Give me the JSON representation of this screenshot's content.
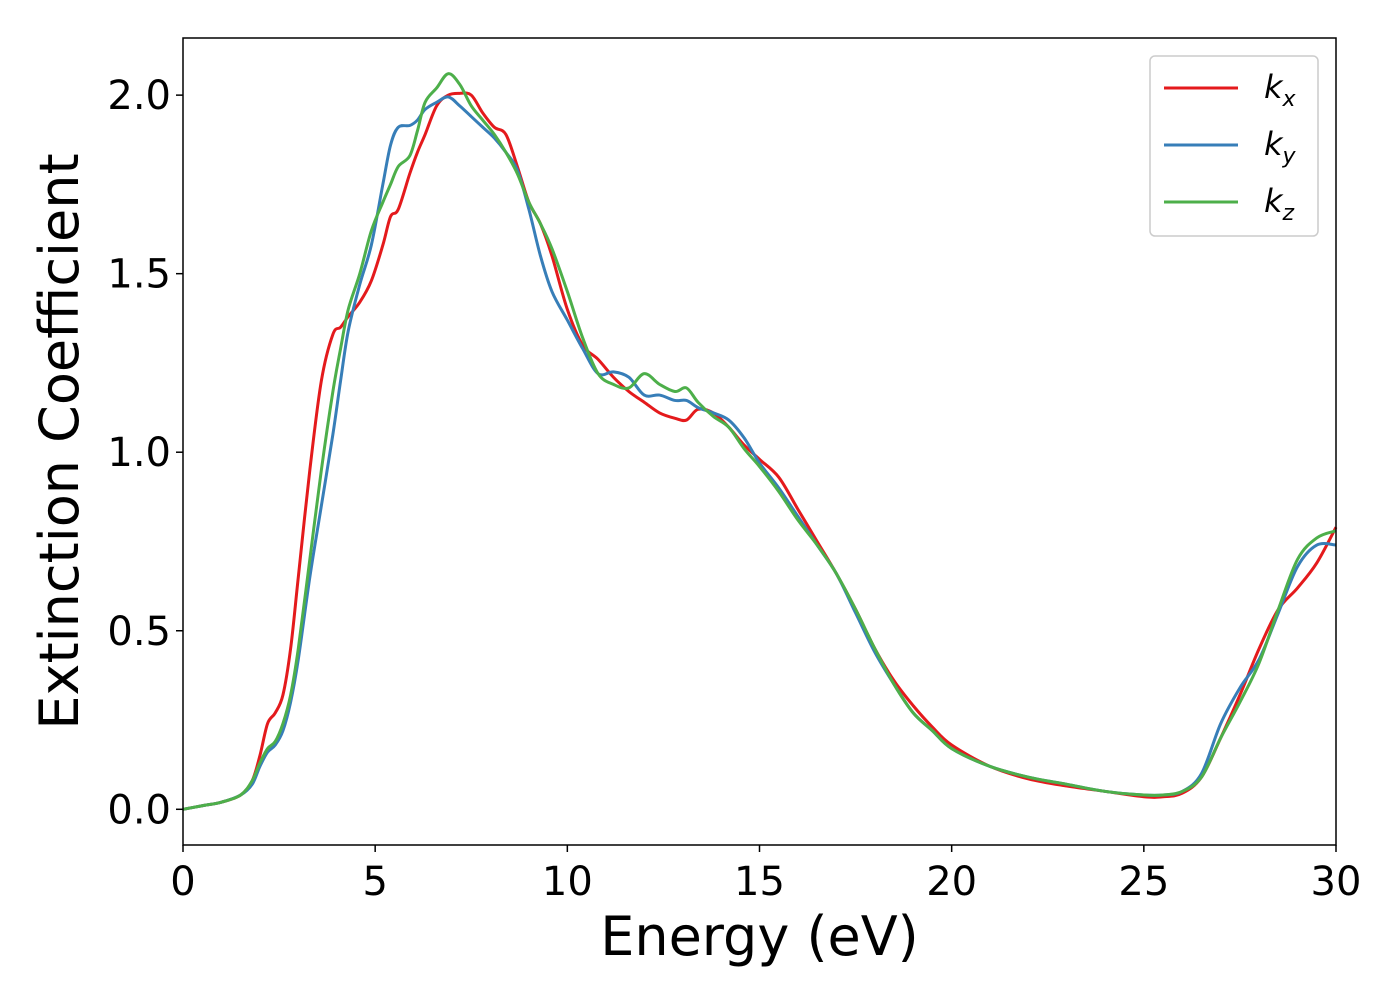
{
  "chart_data": {
    "type": "line",
    "xlabel": "Energy (eV)",
    "ylabel": "Extinction Coefficient",
    "xlim": [
      0,
      30
    ],
    "ylim": [
      -0.1,
      2.16
    ],
    "xticks": [
      0,
      5,
      10,
      15,
      20,
      25,
      30
    ],
    "yticks": [
      0.0,
      0.5,
      1.0,
      1.5,
      2.0
    ],
    "xtick_labels": [
      "0",
      "5",
      "10",
      "15",
      "20",
      "25",
      "30"
    ],
    "ytick_labels": [
      "0.0",
      "0.5",
      "1.0",
      "1.5",
      "2.0"
    ],
    "grid": false,
    "legend_position": "top-right",
    "series": [
      {
        "name": "k",
        "subscript": "x",
        "color": "#e41a1c",
        "x": [
          0,
          0.5,
          1,
          1.5,
          1.8,
          2,
          2.2,
          2.4,
          2.6,
          2.8,
          3,
          3.3,
          3.6,
          3.9,
          4.1,
          4.3,
          4.6,
          4.9,
          5.2,
          5.4,
          5.6,
          5.9,
          6.1,
          6.3,
          6.6,
          6.9,
          7.2,
          7.5,
          7.8,
          8.1,
          8.4,
          8.7,
          9,
          9.3,
          9.6,
          10,
          10.4,
          10.8,
          11.2,
          11.6,
          12,
          12.4,
          12.8,
          13.1,
          13.4,
          13.8,
          14.2,
          14.6,
          15,
          15.5,
          16,
          16.5,
          17,
          17.5,
          18,
          18.5,
          19,
          19.5,
          20,
          21,
          22,
          23,
          24,
          25,
          25.5,
          26,
          26.5,
          27,
          27.5,
          28,
          28.5,
          29,
          29.5,
          30
        ],
        "y": [
          0,
          0.01,
          0.02,
          0.04,
          0.08,
          0.15,
          0.24,
          0.27,
          0.32,
          0.45,
          0.65,
          0.95,
          1.2,
          1.33,
          1.35,
          1.38,
          1.42,
          1.48,
          1.58,
          1.66,
          1.68,
          1.78,
          1.84,
          1.89,
          1.97,
          2.0,
          2.005,
          2.0,
          1.95,
          1.91,
          1.89,
          1.8,
          1.7,
          1.64,
          1.55,
          1.4,
          1.3,
          1.26,
          1.21,
          1.17,
          1.14,
          1.11,
          1.095,
          1.09,
          1.12,
          1.11,
          1.07,
          1.02,
          0.98,
          0.93,
          0.84,
          0.75,
          0.66,
          0.56,
          0.45,
          0.36,
          0.29,
          0.23,
          0.18,
          0.12,
          0.085,
          0.065,
          0.05,
          0.035,
          0.035,
          0.045,
          0.09,
          0.2,
          0.32,
          0.45,
          0.56,
          0.62,
          0.69,
          0.79
        ]
      },
      {
        "name": "k",
        "subscript": "y",
        "color": "#377eb8",
        "x": [
          0,
          0.5,
          1,
          1.5,
          1.8,
          2,
          2.2,
          2.4,
          2.6,
          2.8,
          3,
          3.3,
          3.6,
          3.9,
          4.1,
          4.3,
          4.6,
          4.9,
          5.2,
          5.4,
          5.6,
          5.9,
          6.1,
          6.3,
          6.6,
          6.9,
          7.2,
          7.5,
          7.8,
          8.1,
          8.4,
          8.7,
          9,
          9.3,
          9.6,
          10,
          10.4,
          10.8,
          11.2,
          11.6,
          12,
          12.4,
          12.8,
          13.1,
          13.4,
          13.8,
          14.2,
          14.6,
          15,
          15.5,
          16,
          16.5,
          17,
          17.5,
          18,
          18.5,
          19,
          19.5,
          20,
          21,
          22,
          23,
          24,
          25,
          25.5,
          26,
          26.5,
          27,
          27.5,
          28,
          28.5,
          29,
          29.5,
          30
        ],
        "y": [
          0,
          0.01,
          0.02,
          0.04,
          0.07,
          0.12,
          0.16,
          0.18,
          0.22,
          0.3,
          0.42,
          0.65,
          0.85,
          1.05,
          1.2,
          1.34,
          1.47,
          1.58,
          1.75,
          1.86,
          1.91,
          1.915,
          1.93,
          1.96,
          1.98,
          1.995,
          1.97,
          1.94,
          1.91,
          1.88,
          1.84,
          1.79,
          1.68,
          1.55,
          1.45,
          1.37,
          1.29,
          1.22,
          1.225,
          1.21,
          1.16,
          1.16,
          1.145,
          1.145,
          1.125,
          1.11,
          1.09,
          1.04,
          0.97,
          0.9,
          0.82,
          0.74,
          0.66,
          0.55,
          0.44,
          0.35,
          0.27,
          0.22,
          0.17,
          0.12,
          0.09,
          0.07,
          0.05,
          0.04,
          0.04,
          0.05,
          0.1,
          0.24,
          0.34,
          0.42,
          0.55,
          0.68,
          0.74,
          0.74
        ]
      },
      {
        "name": "k",
        "subscript": "z",
        "color": "#4daf4a",
        "x": [
          0,
          0.5,
          1,
          1.5,
          1.8,
          2,
          2.2,
          2.4,
          2.6,
          2.8,
          3,
          3.3,
          3.6,
          3.9,
          4.1,
          4.3,
          4.6,
          4.9,
          5.2,
          5.4,
          5.6,
          5.9,
          6.1,
          6.3,
          6.6,
          6.9,
          7.2,
          7.5,
          7.8,
          8.1,
          8.4,
          8.7,
          9,
          9.3,
          9.6,
          10,
          10.4,
          10.8,
          11.2,
          11.6,
          12,
          12.4,
          12.8,
          13.1,
          13.4,
          13.8,
          14.2,
          14.6,
          15,
          15.5,
          16,
          16.5,
          17,
          17.5,
          18,
          18.5,
          19,
          19.5,
          20,
          21,
          22,
          23,
          24,
          25,
          25.5,
          26,
          26.5,
          27,
          27.5,
          28,
          28.5,
          29,
          29.5,
          30
        ],
        "y": [
          0,
          0.01,
          0.02,
          0.04,
          0.08,
          0.13,
          0.17,
          0.19,
          0.24,
          0.32,
          0.45,
          0.7,
          0.95,
          1.17,
          1.29,
          1.4,
          1.5,
          1.62,
          1.7,
          1.75,
          1.8,
          1.83,
          1.9,
          1.98,
          2.02,
          2.06,
          2.03,
          1.97,
          1.93,
          1.89,
          1.84,
          1.78,
          1.7,
          1.64,
          1.57,
          1.45,
          1.32,
          1.22,
          1.19,
          1.18,
          1.22,
          1.19,
          1.17,
          1.18,
          1.14,
          1.1,
          1.07,
          1.01,
          0.96,
          0.89,
          0.81,
          0.74,
          0.66,
          0.56,
          0.45,
          0.35,
          0.27,
          0.22,
          0.17,
          0.12,
          0.09,
          0.07,
          0.05,
          0.04,
          0.04,
          0.05,
          0.09,
          0.2,
          0.3,
          0.41,
          0.56,
          0.7,
          0.76,
          0.78
        ]
      }
    ]
  }
}
